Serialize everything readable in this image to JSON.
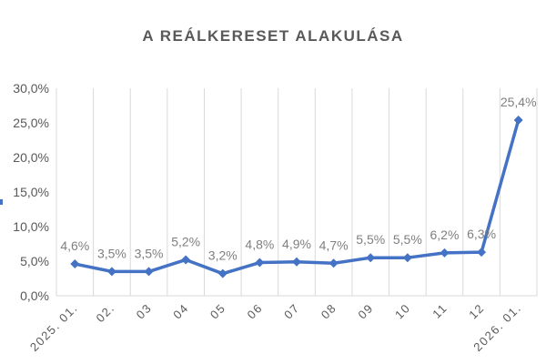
{
  "chart_data": {
    "type": "line",
    "title": "A REÁLKERESET ALAKULÁSA",
    "categories": [
      "2025. 01.",
      "02.",
      "03",
      "04",
      "05",
      "06",
      "07",
      "08",
      "09",
      "10",
      "11",
      "12",
      "2026. 01."
    ],
    "values": [
      4.6,
      3.5,
      3.5,
      5.2,
      3.2,
      4.8,
      4.9,
      4.7,
      5.5,
      5.5,
      6.2,
      6.3,
      25.4
    ],
    "data_labels": [
      "4,6%",
      "3,5%",
      "3,5%",
      "5,2%",
      "3,2%",
      "4,8%",
      "4,9%",
      "4,7%",
      "5,5%",
      "5,5%",
      "6,2%",
      "6,3%",
      "25,4%"
    ],
    "ylim": [
      0,
      30
    ],
    "yticks": [
      0,
      5,
      10,
      15,
      20,
      25,
      30
    ],
    "ytick_labels": [
      "0,0%",
      "5,0%",
      "10,0%",
      "15,0%",
      "20,0%",
      "25,0%",
      "30,0%"
    ],
    "xlabel": "",
    "ylabel": "",
    "grid": "vertical",
    "marker": "diamond",
    "color": "#4472c4",
    "legend": "none"
  }
}
